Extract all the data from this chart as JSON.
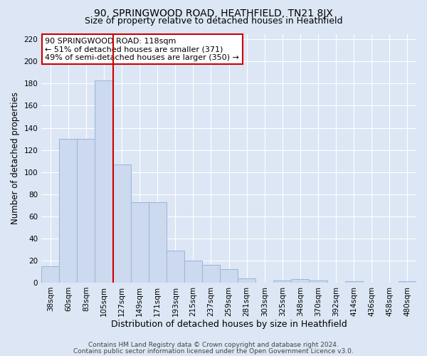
{
  "title": "90, SPRINGWOOD ROAD, HEATHFIELD, TN21 8JX",
  "subtitle": "Size of property relative to detached houses in Heathfield",
  "xlabel": "Distribution of detached houses by size in Heathfield",
  "ylabel": "Number of detached properties",
  "bar_labels": [
    "38sqm",
    "60sqm",
    "83sqm",
    "105sqm",
    "127sqm",
    "149sqm",
    "171sqm",
    "193sqm",
    "215sqm",
    "237sqm",
    "259sqm",
    "281sqm",
    "303sqm",
    "325sqm",
    "348sqm",
    "370sqm",
    "392sqm",
    "414sqm",
    "436sqm",
    "458sqm",
    "480sqm"
  ],
  "bar_values": [
    15,
    130,
    130,
    183,
    107,
    73,
    73,
    29,
    20,
    16,
    12,
    4,
    0,
    2,
    3,
    2,
    0,
    1,
    0,
    0,
    1
  ],
  "bar_color": "#ccd9ee",
  "bar_edge_color": "#9ab5d9",
  "vline_x": 3.5,
  "vline_color": "#cc0000",
  "ylim": [
    0,
    225
  ],
  "yticks": [
    0,
    20,
    40,
    60,
    80,
    100,
    120,
    140,
    160,
    180,
    200,
    220
  ],
  "annotation_text": "90 SPRINGWOOD ROAD: 118sqm\n← 51% of detached houses are smaller (371)\n49% of semi-detached houses are larger (350) →",
  "annotation_box_color": "#ffffff",
  "annotation_box_edge": "#cc0000",
  "footer1": "Contains HM Land Registry data © Crown copyright and database right 2024.",
  "footer2": "Contains public sector information licensed under the Open Government Licence v3.0.",
  "background_color": "#dce6f5",
  "plot_bg_color": "#dce6f5",
  "title_fontsize": 10,
  "subtitle_fontsize": 9,
  "xlabel_fontsize": 9,
  "ylabel_fontsize": 8.5,
  "tick_fontsize": 7.5,
  "annotation_fontsize": 8,
  "footer_fontsize": 6.5
}
